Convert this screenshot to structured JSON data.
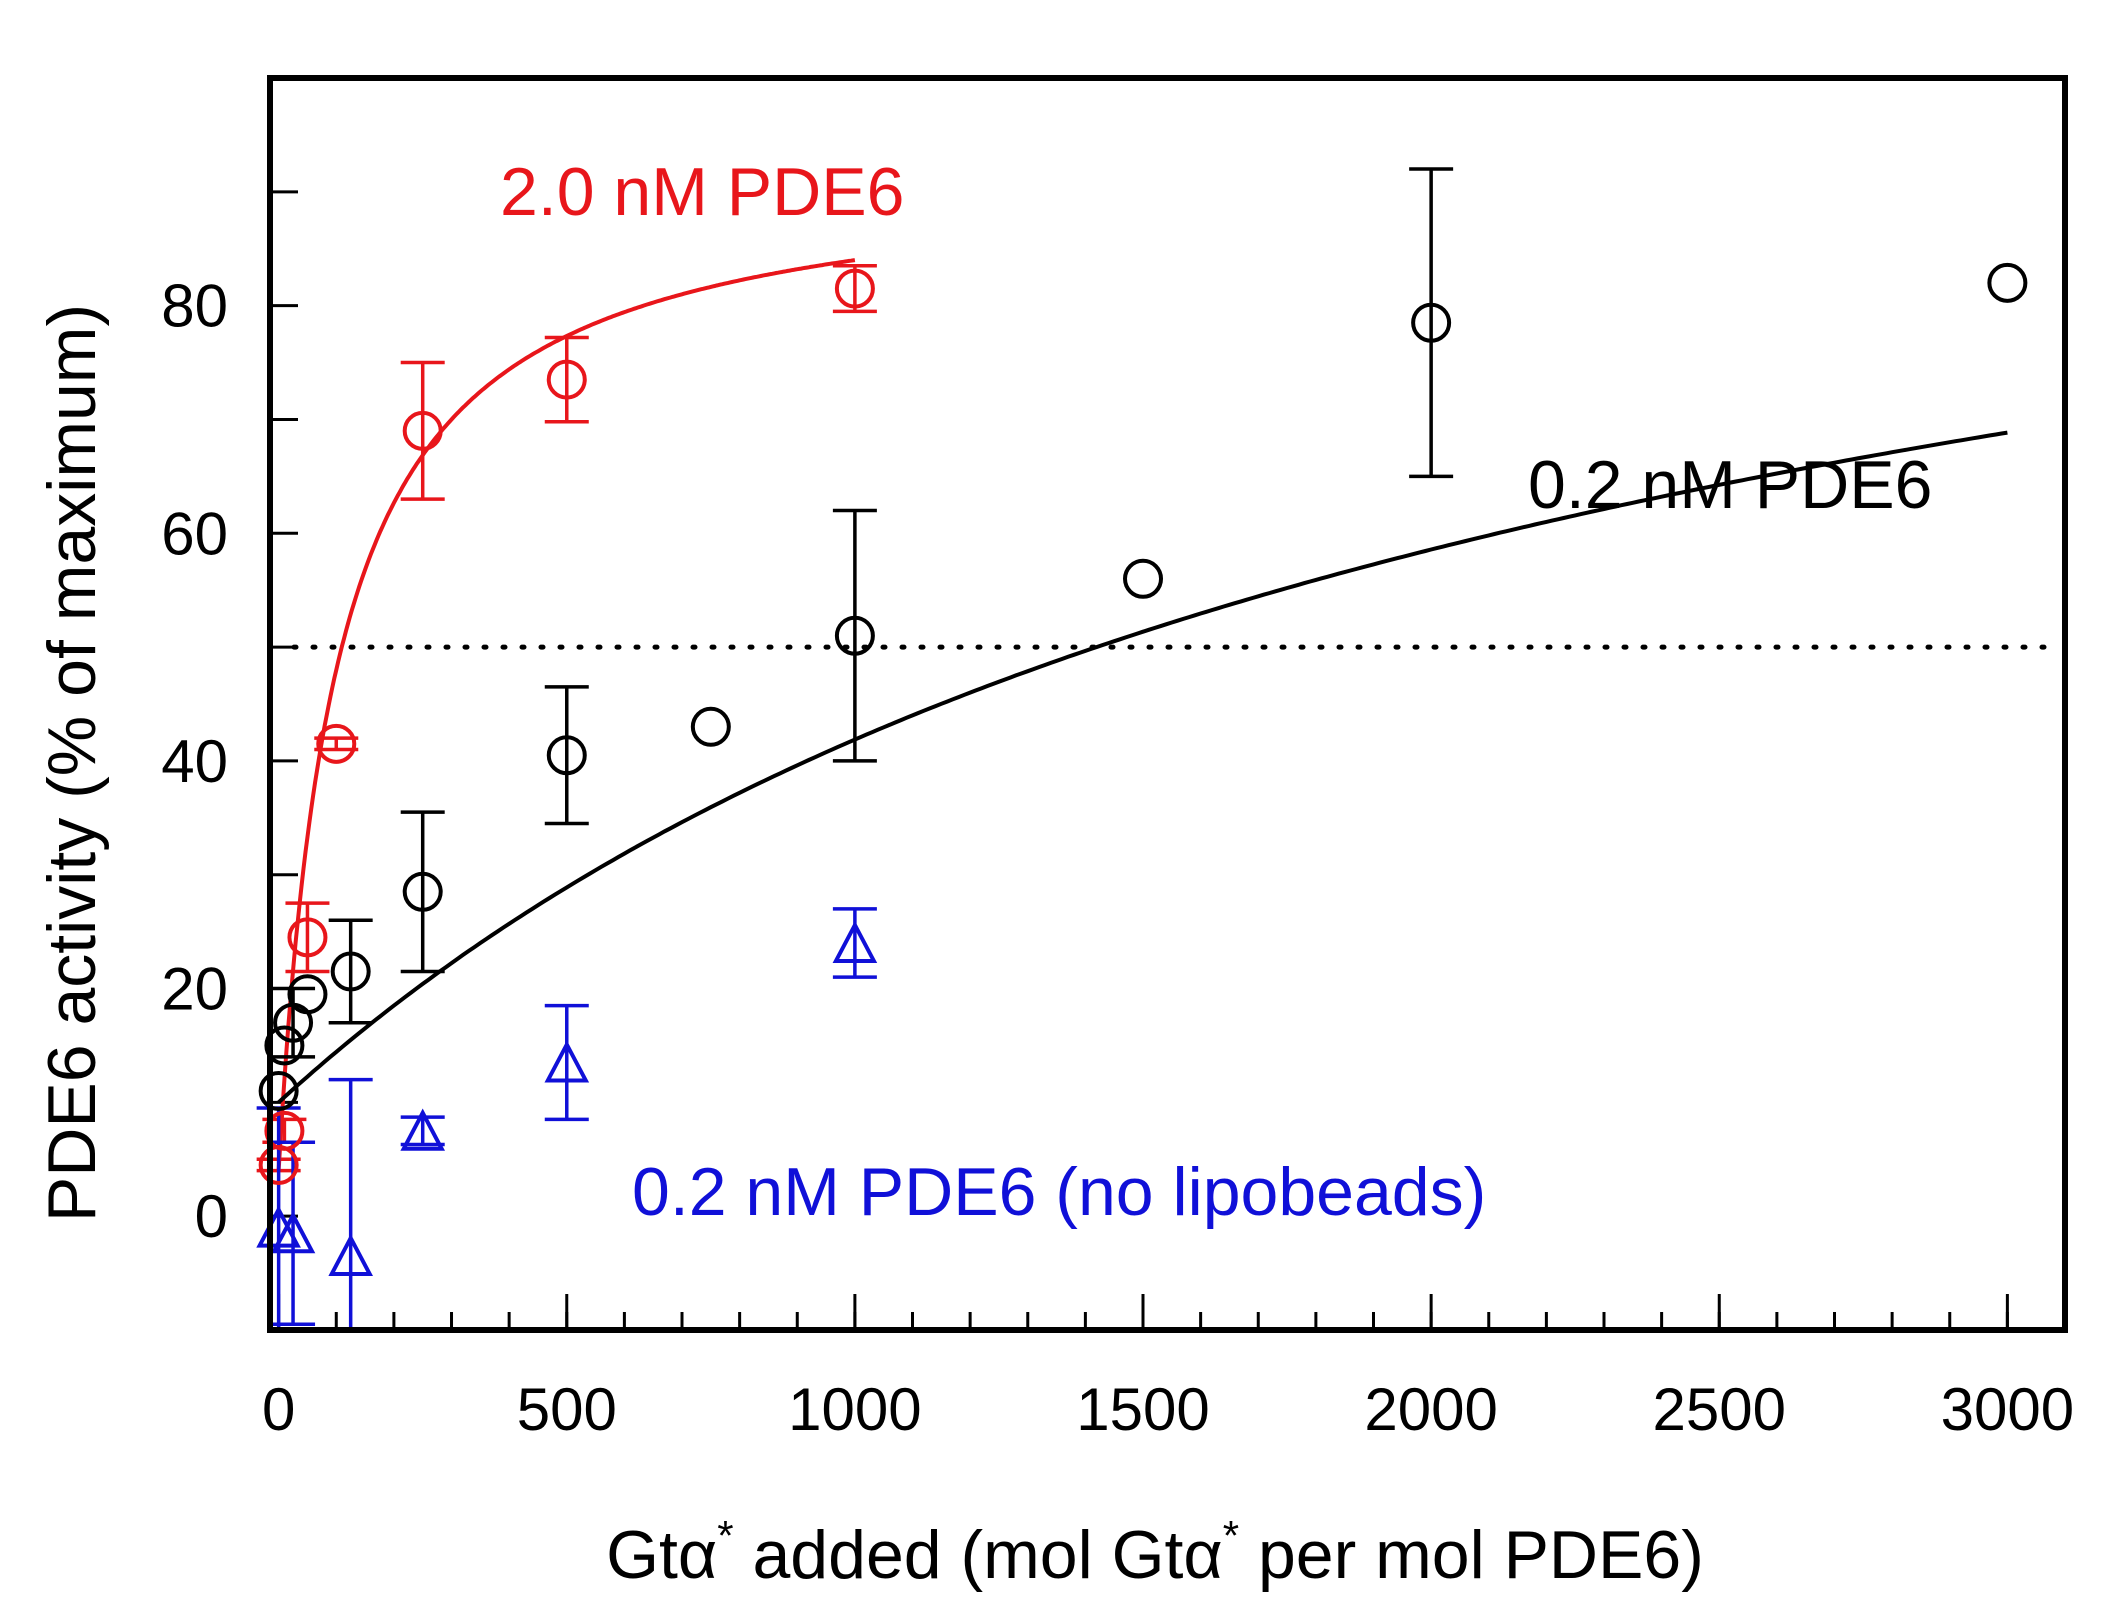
{
  "chart_data": {
    "type": "scatter",
    "xlabel": {
      "parts": [
        "Gt",
        "α",
        "*",
        " added (mol Gt",
        "α",
        "*",
        " per mol PDE6)"
      ]
    },
    "ylabel": "PDE6 activity (% of maximum)",
    "xlim": [
      -15,
      3100
    ],
    "ylim": [
      -10,
      100
    ],
    "x_ticks": [
      0,
      500,
      1000,
      1500,
      2000,
      2500,
      3000
    ],
    "y_ticks": [
      0,
      20,
      40,
      60,
      80
    ],
    "x_tick_labels": [
      "0",
      "500",
      "1000",
      "1500",
      "2000",
      "2500",
      "3000"
    ],
    "y_tick_labels": [
      "0",
      "20",
      "40",
      "60",
      "80"
    ],
    "reference_line": {
      "y": 50,
      "style": "dotted"
    },
    "grid": false,
    "series": [
      {
        "name": "2.0 nM PDE6",
        "color": "#e8161b",
        "marker": "circle",
        "points": [
          {
            "x": 0,
            "y": 4.5,
            "err": 0.5
          },
          {
            "x": 10,
            "y": 7.5,
            "err": 1
          },
          {
            "x": 50,
            "y": 24.5,
            "err": 3
          },
          {
            "x": 100,
            "y": 41.5,
            "err": 0.5
          },
          {
            "x": 250,
            "y": 69,
            "err": 6
          },
          {
            "x": 500,
            "y": 73.5,
            "err": 3.7
          },
          {
            "x": 1000,
            "y": 81.5,
            "err": 2
          }
        ],
        "fit": {
          "ymin": 4,
          "ymax": 92,
          "k": 100,
          "x_end": 1000
        }
      },
      {
        "name": "0.2 nM PDE6",
        "color": "#000000",
        "marker": "circle",
        "points": [
          {
            "x": 0,
            "y": 11,
            "err": 0
          },
          {
            "x": 10,
            "y": 15,
            "err": 0
          },
          {
            "x": 25,
            "y": 17,
            "err": 3
          },
          {
            "x": 50,
            "y": 19.5,
            "err": 0
          },
          {
            "x": 125,
            "y": 21.5,
            "err": 4.5
          },
          {
            "x": 250,
            "y": 28.5,
            "err": 7
          },
          {
            "x": 500,
            "y": 40.5,
            "err": 6
          },
          {
            "x": 750,
            "y": 43,
            "err": 0
          },
          {
            "x": 1000,
            "y": 51,
            "err": 11
          },
          {
            "x": 1500,
            "y": 56,
            "err": 0
          },
          {
            "x": 2000,
            "y": 78.5,
            "err": 13.5
          },
          {
            "x": 3000,
            "y": 82,
            "err": 0
          }
        ],
        "fit": {
          "ymin": 10,
          "ymax": 112,
          "k": 2200,
          "x_end": 3000
        }
      },
      {
        "name": "0.2 nM PDE6 (no lipobeads)",
        "color": "#1010d8",
        "marker": "triangle",
        "points": [
          {
            "x": 0,
            "y": -1,
            "err": 10.5
          },
          {
            "x": 25,
            "y": -1.5,
            "err": 8
          },
          {
            "x": 125,
            "y": -3.5,
            "err": 15.5
          },
          {
            "x": 250,
            "y": 7.5,
            "err": 1.2
          },
          {
            "x": 500,
            "y": 13.5,
            "err": 5
          },
          {
            "x": 1000,
            "y": 24,
            "err": 3
          }
        ]
      }
    ]
  }
}
